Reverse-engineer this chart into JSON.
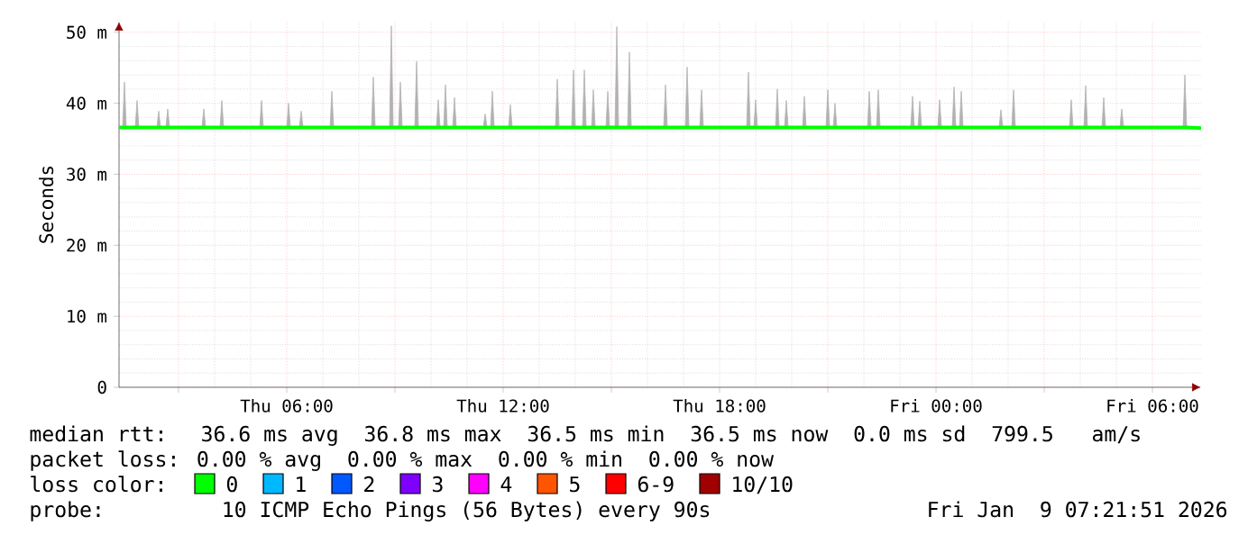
{
  "chart_data": {
    "type": "line",
    "ylabel": "Seconds",
    "legend_title": "loss color:",
    "legend": "bottom",
    "grid": true,
    "xlim": [
      "2026-01-08T01:21",
      "2026-01-09T07:21"
    ],
    "xticks": [
      {
        "value": "2026-01-08T03:00",
        "label": null
      },
      {
        "value": "2026-01-08T06:00",
        "label": "Thu 06:00"
      },
      {
        "value": "2026-01-08T09:00",
        "label": null
      },
      {
        "value": "2026-01-08T12:00",
        "label": "Thu 12:00"
      },
      {
        "value": "2026-01-08T15:00",
        "label": null
      },
      {
        "value": "2026-01-08T18:00",
        "label": "Thu 18:00"
      },
      {
        "value": "2026-01-08T21:00",
        "label": null
      },
      {
        "value": "2026-01-09T00:00",
        "label": "Fri 00:00"
      },
      {
        "value": "2026-01-09T03:00",
        "label": null
      },
      {
        "value": "2026-01-09T06:00",
        "label": "Fri 06:00"
      }
    ],
    "ylim": [
      0,
      51.5
    ],
    "yticks": [
      0,
      {
        "value": 10,
        "label": "10 m"
      },
      {
        "value": 20,
        "label": "20 m"
      },
      {
        "value": 30,
        "label": "30 m"
      },
      {
        "value": 40,
        "label": "40 m"
      },
      {
        "value": 50,
        "label": "50 m"
      }
    ],
    "series": [
      {
        "name": "0",
        "color": "#00ff00",
        "x": [
          "2026-01-08T01:21",
          "2026-01-08T01:27",
          "2026-01-08T01:30",
          "2026-01-08T01:33",
          "2026-01-08T01:48",
          "2026-01-08T01:51",
          "2026-01-08T01:54",
          "2026-01-08T02:24",
          "2026-01-08T02:27",
          "2026-01-08T02:30",
          "2026-01-08T02:39",
          "2026-01-08T02:42",
          "2026-01-08T02:45",
          "2026-01-08T03:39",
          "2026-01-08T03:42",
          "2026-01-08T03:45",
          "2026-01-08T04:09",
          "2026-01-08T04:12",
          "2026-01-08T04:15",
          "2026-01-08T05:15",
          "2026-01-08T05:18",
          "2026-01-08T05:21",
          "2026-01-08T06:00",
          "2026-01-08T06:03",
          "2026-01-08T06:06",
          "2026-01-08T06:21",
          "2026-01-08T06:24",
          "2026-01-08T06:27",
          "2026-01-08T07:12",
          "2026-01-08T07:15",
          "2026-01-08T07:18",
          "2026-01-08T08:21",
          "2026-01-08T08:24",
          "2026-01-08T08:27",
          "2026-01-08T08:51",
          "2026-01-08T08:54",
          "2026-01-08T08:57",
          "2026-01-08T09:06",
          "2026-01-08T09:09",
          "2026-01-08T09:12",
          "2026-01-08T09:33",
          "2026-01-08T09:36",
          "2026-01-08T09:39",
          "2026-01-08T10:09",
          "2026-01-08T10:12",
          "2026-01-08T10:15",
          "2026-01-08T10:21",
          "2026-01-08T10:24",
          "2026-01-08T10:27",
          "2026-01-08T10:36",
          "2026-01-08T10:39",
          "2026-01-08T10:42",
          "2026-01-08T11:27",
          "2026-01-08T11:30",
          "2026-01-08T11:33",
          "2026-01-08T11:39",
          "2026-01-08T11:42",
          "2026-01-08T11:45",
          "2026-01-08T12:09",
          "2026-01-08T12:12",
          "2026-01-08T12:15",
          "2026-01-08T13:27",
          "2026-01-08T13:30",
          "2026-01-08T13:33",
          "2026-01-08T13:54",
          "2026-01-08T13:57",
          "2026-01-08T14:00",
          "2026-01-08T14:12",
          "2026-01-08T14:15",
          "2026-01-08T14:18",
          "2026-01-08T14:27",
          "2026-01-08T14:30",
          "2026-01-08T14:33",
          "2026-01-08T14:51",
          "2026-01-08T14:54",
          "2026-01-08T14:57",
          "2026-01-08T15:06",
          "2026-01-08T15:09",
          "2026-01-08T15:12",
          "2026-01-08T15:27",
          "2026-01-08T15:30",
          "2026-01-08T15:33",
          "2026-01-08T16:27",
          "2026-01-08T16:30",
          "2026-01-08T16:33",
          "2026-01-08T17:03",
          "2026-01-08T17:06",
          "2026-01-08T17:09",
          "2026-01-08T17:27",
          "2026-01-08T17:30",
          "2026-01-08T17:33",
          "2026-01-08T18:45",
          "2026-01-08T18:48",
          "2026-01-08T18:51",
          "2026-01-08T18:57",
          "2026-01-08T19:00",
          "2026-01-08T19:03",
          "2026-01-08T19:33",
          "2026-01-08T19:36",
          "2026-01-08T19:39",
          "2026-01-08T19:48",
          "2026-01-08T19:51",
          "2026-01-08T19:54",
          "2026-01-08T20:18",
          "2026-01-08T20:21",
          "2026-01-08T20:24",
          "2026-01-08T20:57",
          "2026-01-08T21:00",
          "2026-01-08T21:03",
          "2026-01-08T21:09",
          "2026-01-08T21:12",
          "2026-01-08T21:15",
          "2026-01-08T22:06",
          "2026-01-08T22:09",
          "2026-01-08T22:12",
          "2026-01-08T22:21",
          "2026-01-08T22:24",
          "2026-01-08T22:27",
          "2026-01-08T23:18",
          "2026-01-08T23:21",
          "2026-01-08T23:24",
          "2026-01-08T23:30",
          "2026-01-08T23:33",
          "2026-01-08T23:36",
          "2026-01-09T00:03",
          "2026-01-09T00:06",
          "2026-01-09T00:09",
          "2026-01-09T00:27",
          "2026-01-09T00:30",
          "2026-01-09T00:33",
          "2026-01-09T00:39",
          "2026-01-09T00:42",
          "2026-01-09T00:45",
          "2026-01-09T01:45",
          "2026-01-09T01:48",
          "2026-01-09T01:51",
          "2026-01-09T02:06",
          "2026-01-09T02:09",
          "2026-01-09T02:12",
          "2026-01-09T03:42",
          "2026-01-09T03:45",
          "2026-01-09T03:48",
          "2026-01-09T04:06",
          "2026-01-09T04:09",
          "2026-01-09T04:12",
          "2026-01-09T04:36",
          "2026-01-09T04:39",
          "2026-01-09T04:42",
          "2026-01-09T05:06",
          "2026-01-09T05:09",
          "2026-01-09T05:12",
          "2026-01-09T06:51",
          "2026-01-09T06:54",
          "2026-01-09T06:57",
          "2026-01-09T07:21"
        ],
        "values": [
          36.6,
          36.6,
          36.6,
          36.6,
          36.6,
          36.6,
          36.6,
          36.6,
          36.6,
          36.6,
          36.6,
          36.6,
          36.6,
          36.6,
          36.6,
          36.6,
          36.6,
          36.6,
          36.6,
          36.6,
          36.6,
          36.6,
          36.6,
          36.6,
          36.6,
          36.6,
          36.6,
          36.6,
          36.6,
          36.6,
          36.6,
          36.6,
          36.6,
          36.6,
          36.6,
          36.6,
          36.6,
          36.6,
          36.6,
          36.6,
          36.6,
          36.6,
          36.6,
          36.6,
          36.6,
          36.6,
          36.6,
          36.6,
          36.6,
          36.6,
          36.6,
          36.6,
          36.6,
          36.6,
          36.6,
          36.6,
          36.6,
          36.6,
          36.6,
          36.6,
          36.6,
          36.6,
          36.6,
          36.6,
          36.6,
          36.6,
          36.6,
          36.6,
          36.6,
          36.6,
          36.6,
          36.6,
          36.6,
          36.6,
          36.6,
          36.6,
          36.6,
          36.6,
          36.6,
          36.6,
          36.6,
          36.6,
          36.6,
          36.6,
          36.6,
          36.6,
          36.6,
          36.6,
          36.6,
          36.6,
          36.6,
          36.6,
          36.6,
          36.6,
          36.6,
          36.6,
          36.6,
          36.6,
          36.6,
          36.6,
          36.6,
          36.6,
          36.6,
          36.6,
          36.6,
          36.6,
          36.6,
          36.6,
          36.6,
          36.6,
          36.6,
          36.6,
          36.6,
          36.6,
          36.6,
          36.6,
          36.6,
          36.6,
          36.6,
          36.6,
          36.6,
          36.6,
          36.6,
          36.6,
          36.6,
          36.6,
          36.6,
          36.6,
          36.6,
          36.6,
          36.6,
          36.6,
          36.6,
          36.6,
          36.6,
          36.6,
          36.6,
          36.6,
          36.6,
          36.6,
          36.6,
          36.6,
          36.6,
          36.6,
          36.6,
          36.6,
          36.6,
          36.6,
          36.6,
          36.6,
          36.6,
          36.6,
          36.6,
          36.6,
          36.5
        ],
        "lower": [
          36.6,
          36.6,
          36.6,
          36.6,
          36.6,
          36.6,
          36.6,
          36.6,
          36.6,
          36.6,
          36.6,
          36.6,
          36.6,
          36.6,
          36.6,
          36.6,
          36.6,
          36.6,
          36.6,
          36.6,
          36.6,
          36.6,
          36.6,
          36.6,
          36.6,
          36.6,
          36.6,
          36.6,
          36.6,
          36.6,
          36.6,
          36.6,
          36.6,
          36.6,
          36.6,
          36.6,
          36.6,
          36.6,
          36.6,
          36.6,
          36.6,
          36.6,
          36.6,
          36.6,
          36.6,
          36.6,
          36.6,
          36.6,
          36.6,
          36.6,
          36.6,
          36.6,
          36.6,
          36.6,
          36.6,
          36.6,
          36.6,
          36.6,
          36.6,
          36.6,
          36.6,
          36.6,
          36.6,
          36.6,
          36.6,
          36.6,
          36.6,
          36.6,
          36.6,
          36.6,
          36.6,
          36.6,
          36.6,
          36.6,
          36.6,
          36.6,
          36.6,
          36.6,
          36.6,
          36.6,
          36.6,
          36.6,
          36.6,
          36.6,
          36.6,
          36.6,
          36.6,
          36.6,
          36.6,
          36.6,
          36.6,
          36.6,
          36.6,
          36.6,
          36.6,
          36.6,
          36.6,
          36.6,
          36.6,
          36.6,
          36.6,
          36.6,
          36.6,
          36.6,
          36.6,
          36.6,
          36.6,
          36.6,
          36.6,
          36.6,
          36.6,
          36.6,
          36.6,
          36.6,
          36.6,
          36.6,
          36.6,
          36.6,
          36.6,
          36.6,
          36.6,
          36.6,
          36.6,
          36.6,
          36.6,
          36.6,
          36.6,
          36.6,
          36.6,
          36.6,
          36.6,
          36.6,
          36.6,
          36.6,
          36.6,
          36.6,
          36.6,
          36.6,
          36.6,
          36.6,
          36.6,
          36.6,
          36.6,
          36.6,
          36.6,
          36.6,
          36.6,
          36.6,
          36.6,
          36.6,
          36.6,
          36.6,
          36.6,
          36.6,
          36.5
        ],
        "upper": [
          36.6,
          36.6,
          43.0,
          36.6,
          36.6,
          40.4,
          36.6,
          36.6,
          38.9,
          36.6,
          36.6,
          39.2,
          36.6,
          36.6,
          39.2,
          36.6,
          36.6,
          40.4,
          36.6,
          36.6,
          40.4,
          36.6,
          36.6,
          40.0,
          36.6,
          36.6,
          38.9,
          36.6,
          36.6,
          41.7,
          36.6,
          36.6,
          43.7,
          36.6,
          36.6,
          50.9,
          36.6,
          36.6,
          43.0,
          36.6,
          36.6,
          45.9,
          36.6,
          36.6,
          40.5,
          36.6,
          36.6,
          42.6,
          36.6,
          36.6,
          40.8,
          36.6,
          36.6,
          38.5,
          36.6,
          36.6,
          41.7,
          36.6,
          36.6,
          39.8,
          36.6,
          36.6,
          43.4,
          36.6,
          36.6,
          44.7,
          36.6,
          36.6,
          44.7,
          36.6,
          36.6,
          41.9,
          36.6,
          36.6,
          41.7,
          36.6,
          36.6,
          50.8,
          36.6,
          36.6,
          47.2,
          36.6,
          36.6,
          42.6,
          36.6,
          36.6,
          45.1,
          36.6,
          36.6,
          41.9,
          36.6,
          36.6,
          44.4,
          36.6,
          36.6,
          40.5,
          36.6,
          36.6,
          42.0,
          36.6,
          36.6,
          40.4,
          36.6,
          36.6,
          41.0,
          36.6,
          36.6,
          41.9,
          36.6,
          36.6,
          40.0,
          36.6,
          36.6,
          41.7,
          36.6,
          36.6,
          41.9,
          36.6,
          36.6,
          41.0,
          36.6,
          36.6,
          40.3,
          36.6,
          36.6,
          40.5,
          36.6,
          36.6,
          42.3,
          36.6,
          36.6,
          41.7,
          36.6,
          36.6,
          39.1,
          36.6,
          36.6,
          41.9,
          36.6,
          36.6,
          40.5,
          36.6,
          36.6,
          42.5,
          36.6,
          36.6,
          40.8,
          36.6,
          36.6,
          39.2,
          36.6,
          36.6,
          44.0,
          36.6,
          36.5
        ]
      },
      {
        "name": "1",
        "color": "#00b8ff"
      },
      {
        "name": "2",
        "color": "#0059ff"
      },
      {
        "name": "3",
        "color": "#7e00ff"
      },
      {
        "name": "4",
        "color": "#ff00ff"
      },
      {
        "name": "5",
        "color": "#ff5500"
      },
      {
        "name": "6-9",
        "color": "#ff0000"
      },
      {
        "name": "10/10",
        "color": "#a10000"
      }
    ],
    "annotations": [
      "median rtt:  36.6 ms avg  36.8 ms max  36.5 ms min  36.5 ms now  0.0 ms sd  799.5   am/s",
      "packet loss: 0.00 % avg  0.00 % max  0.00 % min  0.00 % now",
      "probe:       10 ICMP Echo Pings (56 Bytes) every 90s",
      "Fri Jan  9 07:21:51 2026"
    ]
  }
}
